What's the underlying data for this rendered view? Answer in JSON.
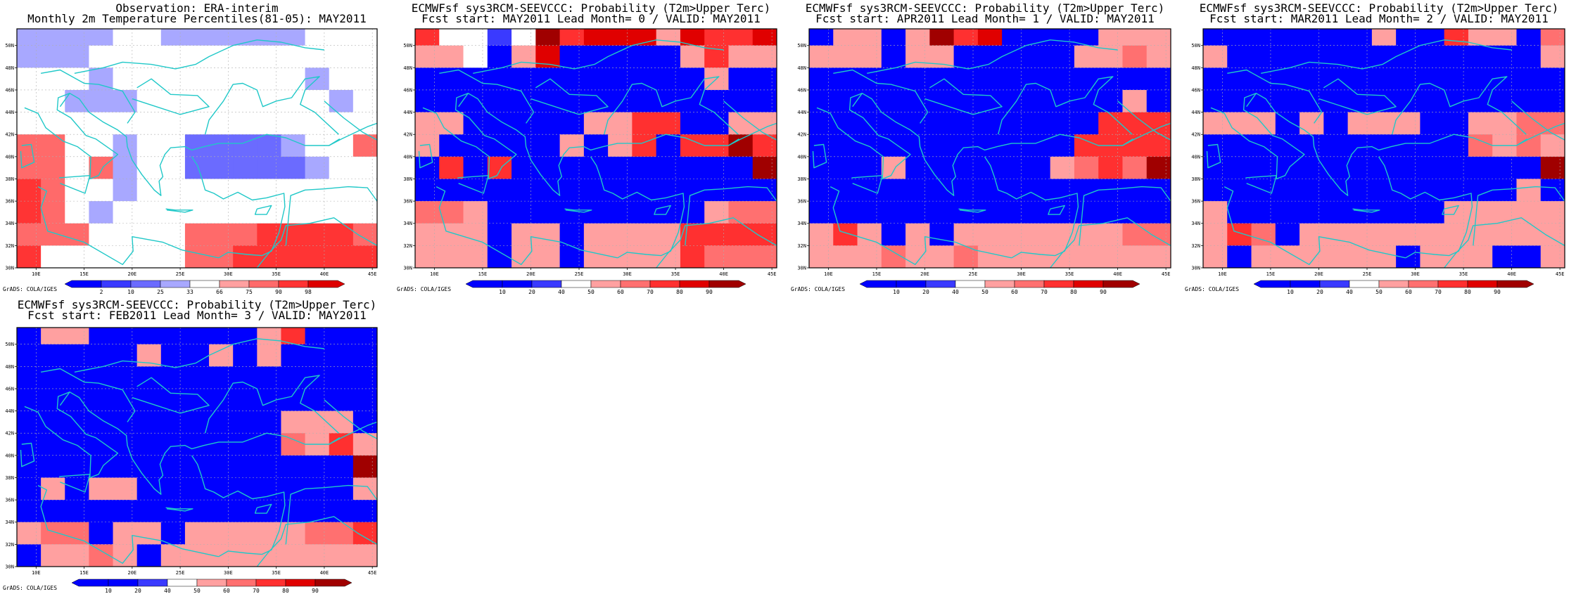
{
  "credit": "GrADS: COLA/IGES",
  "grid": {
    "lon_edges": [
      8,
      10.5,
      13,
      15.5,
      18,
      20.5,
      23,
      25.5,
      28,
      30.5,
      33,
      35.5,
      38,
      40.5,
      43,
      45.5
    ],
    "lat_edges": [
      30,
      32,
      34,
      36,
      38,
      40,
      42,
      44,
      46,
      48,
      50,
      52
    ]
  },
  "axes": {
    "lon_ticks": [
      10,
      15,
      20,
      25,
      30,
      35,
      40,
      45
    ],
    "lon_labels": [
      "10E",
      "15E",
      "20E",
      "25E",
      "30E",
      "35E",
      "40E",
      "45E"
    ],
    "lat_ticks": [
      30,
      32,
      34,
      36,
      38,
      40,
      42,
      44,
      46,
      48,
      50
    ],
    "lat_labels": [
      "30N",
      "32N",
      "34N",
      "36N",
      "38N",
      "40N",
      "42N",
      "44N",
      "46N",
      "48N",
      "50N"
    ]
  },
  "legends": {
    "percentile": {
      "labels": [
        "2",
        "10",
        "25",
        "33",
        "66",
        "75",
        "90",
        "98"
      ],
      "colors": [
        "#0000ff",
        "#3a3aff",
        "#6b6bff",
        "#a8a8ff",
        "#ffffff",
        "#ffa0a0",
        "#ff6a6a",
        "#ff3434",
        "#dd0000"
      ]
    },
    "probability": {
      "labels": [
        "10",
        "20",
        "40",
        "50",
        "60",
        "70",
        "80",
        "90"
      ],
      "colors": [
        "#0000ff",
        "#0000ff",
        "#3a3aff",
        "#ffffff",
        "#ffa0a0",
        "#ff7070",
        "#ff3030",
        "#e00000",
        "#a00000"
      ]
    }
  },
  "panels": [
    {
      "title1": "Observation: ERA-interim",
      "title2": "Monthly 2m Temperature Percentiles(81-05): MAY2011",
      "legend": "percentile",
      "cells": [
        [
          3,
          3,
          3,
          3,
          4,
          4,
          3,
          3,
          3,
          3,
          3,
          3,
          4,
          4,
          4
        ],
        [
          3,
          3,
          3,
          4,
          4,
          4,
          4,
          4,
          4,
          4,
          4,
          4,
          4,
          4,
          4
        ],
        [
          4,
          4,
          4,
          3,
          4,
          4,
          4,
          4,
          4,
          4,
          4,
          4,
          3,
          4,
          4
        ],
        [
          4,
          4,
          3,
          3,
          3,
          4,
          4,
          4,
          4,
          4,
          4,
          4,
          4,
          3,
          4
        ],
        [
          4,
          4,
          4,
          4,
          4,
          4,
          4,
          4,
          4,
          4,
          4,
          4,
          4,
          4,
          4
        ],
        [
          6,
          6,
          4,
          4,
          3,
          4,
          4,
          2,
          2,
          2,
          2,
          3,
          4,
          4,
          6
        ],
        [
          6,
          6,
          4,
          6,
          3,
          4,
          4,
          2,
          2,
          2,
          2,
          2,
          3,
          4,
          4
        ],
        [
          7,
          6,
          4,
          4,
          3,
          4,
          4,
          4,
          4,
          4,
          4,
          4,
          4,
          4,
          4
        ],
        [
          7,
          6,
          4,
          3,
          4,
          4,
          4,
          4,
          4,
          4,
          4,
          4,
          4,
          4,
          4
        ],
        [
          6,
          6,
          6,
          4,
          4,
          4,
          4,
          6,
          6,
          6,
          7,
          7,
          7,
          7,
          6
        ],
        [
          7,
          4,
          4,
          4,
          4,
          4,
          4,
          6,
          6,
          7,
          7,
          7,
          7,
          7,
          7
        ]
      ]
    },
    {
      "title1": "ECMWFsf sys3RCM-SEEVCCC: Probability (T2m>Upper Terc)",
      "title2": "Fcst start: MAY2011   Lead Month= 0 / VALID: MAY2011",
      "legend": "probability",
      "cells": [
        [
          6,
          3,
          3,
          2,
          3,
          8,
          6,
          7,
          7,
          7,
          4,
          7,
          6,
          6,
          7
        ],
        [
          4,
          4,
          3,
          0,
          4,
          7,
          1,
          1,
          1,
          1,
          1,
          4,
          6,
          4,
          4
        ],
        [
          1,
          1,
          1,
          1,
          1,
          1,
          1,
          1,
          1,
          1,
          1,
          1,
          4,
          1,
          1
        ],
        [
          1,
          1,
          1,
          1,
          1,
          1,
          1,
          1,
          1,
          1,
          1,
          1,
          1,
          1,
          1
        ],
        [
          4,
          4,
          1,
          1,
          1,
          1,
          1,
          4,
          4,
          6,
          6,
          1,
          1,
          4,
          4
        ],
        [
          4,
          1,
          1,
          1,
          1,
          1,
          4,
          1,
          4,
          6,
          1,
          6,
          6,
          8,
          6
        ],
        [
          1,
          6,
          1,
          6,
          1,
          1,
          1,
          1,
          1,
          1,
          1,
          1,
          1,
          1,
          8
        ],
        [
          1,
          1,
          1,
          1,
          1,
          1,
          1,
          1,
          1,
          1,
          1,
          1,
          1,
          1,
          1
        ],
        [
          5,
          5,
          4,
          1,
          1,
          1,
          1,
          1,
          1,
          1,
          1,
          1,
          4,
          5,
          5
        ],
        [
          4,
          4,
          4,
          1,
          4,
          4,
          1,
          4,
          4,
          4,
          4,
          6,
          6,
          6,
          6
        ],
        [
          4,
          4,
          4,
          1,
          4,
          4,
          1,
          4,
          4,
          4,
          4,
          6,
          5,
          5,
          5
        ]
      ]
    },
    {
      "title1": "ECMWFsf sys3RCM-SEEVCCC: Probability (T2m>Upper Terc)",
      "title2": "Fcst start: APR2011   Lead Month= 1 / VALID: MAY2011",
      "legend": "probability",
      "cells": [
        [
          1,
          4,
          4,
          1,
          4,
          8,
          6,
          7,
          1,
          1,
          1,
          1,
          4,
          4,
          4
        ],
        [
          4,
          4,
          4,
          1,
          4,
          4,
          1,
          1,
          1,
          1,
          1,
          4,
          4,
          5,
          4
        ],
        [
          1,
          1,
          1,
          1,
          1,
          1,
          1,
          1,
          1,
          1,
          1,
          1,
          1,
          1,
          1
        ],
        [
          1,
          1,
          1,
          1,
          1,
          1,
          1,
          1,
          1,
          1,
          1,
          1,
          1,
          4,
          1
        ],
        [
          1,
          1,
          1,
          1,
          1,
          1,
          1,
          1,
          1,
          1,
          1,
          1,
          6,
          6,
          6
        ],
        [
          1,
          1,
          1,
          1,
          1,
          1,
          1,
          1,
          1,
          1,
          1,
          6,
          6,
          6,
          6
        ],
        [
          1,
          1,
          1,
          4,
          1,
          1,
          1,
          1,
          1,
          1,
          4,
          5,
          6,
          5,
          8
        ],
        [
          1,
          1,
          1,
          1,
          1,
          1,
          1,
          1,
          1,
          1,
          1,
          1,
          1,
          1,
          1
        ],
        [
          1,
          1,
          1,
          1,
          1,
          1,
          1,
          1,
          1,
          1,
          1,
          1,
          1,
          1,
          1
        ],
        [
          4,
          6,
          4,
          1,
          4,
          1,
          4,
          4,
          4,
          4,
          4,
          4,
          4,
          5,
          5
        ],
        [
          4,
          4,
          4,
          5,
          4,
          4,
          5,
          4,
          4,
          4,
          4,
          4,
          4,
          4,
          4
        ]
      ]
    },
    {
      "title1": "ECMWFsf sys3RCM-SEEVCCC: Probability (T2m>Upper Terc)",
      "title2": "Fcst start: MAR2011   Lead Month= 2 / VALID: MAY2011",
      "legend": "probability",
      "cells": [
        [
          1,
          1,
          1,
          1,
          1,
          1,
          1,
          4,
          1,
          1,
          6,
          4,
          4,
          1,
          5
        ],
        [
          4,
          1,
          1,
          1,
          1,
          1,
          1,
          1,
          1,
          1,
          1,
          1,
          1,
          1,
          4
        ],
        [
          1,
          1,
          1,
          1,
          1,
          1,
          1,
          1,
          1,
          1,
          1,
          1,
          1,
          1,
          1
        ],
        [
          1,
          1,
          1,
          1,
          1,
          1,
          1,
          1,
          1,
          1,
          1,
          1,
          1,
          1,
          1
        ],
        [
          4,
          4,
          4,
          1,
          4,
          1,
          4,
          4,
          4,
          1,
          1,
          4,
          4,
          5,
          5
        ],
        [
          1,
          1,
          1,
          1,
          1,
          1,
          1,
          1,
          1,
          1,
          1,
          5,
          4,
          5,
          4
        ],
        [
          1,
          1,
          1,
          1,
          1,
          1,
          1,
          1,
          1,
          1,
          1,
          1,
          1,
          1,
          8
        ],
        [
          1,
          1,
          1,
          1,
          1,
          1,
          1,
          1,
          1,
          1,
          1,
          1,
          1,
          4,
          1
        ],
        [
          4,
          1,
          1,
          1,
          1,
          1,
          1,
          1,
          1,
          1,
          4,
          4,
          4,
          4,
          4
        ],
        [
          4,
          6,
          5,
          1,
          4,
          4,
          4,
          4,
          4,
          4,
          4,
          4,
          4,
          4,
          4
        ],
        [
          4,
          1,
          4,
          4,
          4,
          4,
          4,
          4,
          1,
          4,
          4,
          4,
          1,
          1,
          4
        ]
      ]
    },
    {
      "title1": "ECMWFsf sys3RCM-SEEVCCC: Probability (T2m>Upper Terc)",
      "title2": "Fcst start: FEB2011   Lead Month= 3 / VALID: MAY2011",
      "legend": "probability",
      "cells": [
        [
          1,
          4,
          4,
          1,
          1,
          1,
          1,
          1,
          1,
          1,
          4,
          6,
          1,
          1,
          1
        ],
        [
          1,
          1,
          1,
          1,
          1,
          4,
          1,
          1,
          4,
          1,
          4,
          1,
          1,
          1,
          1
        ],
        [
          1,
          1,
          1,
          1,
          1,
          1,
          1,
          1,
          1,
          1,
          1,
          1,
          1,
          1,
          1
        ],
        [
          1,
          1,
          1,
          1,
          1,
          1,
          1,
          1,
          1,
          1,
          1,
          1,
          1,
          1,
          1
        ],
        [
          1,
          1,
          1,
          1,
          1,
          1,
          1,
          1,
          1,
          1,
          1,
          4,
          4,
          4,
          1
        ],
        [
          1,
          1,
          1,
          1,
          1,
          1,
          1,
          1,
          1,
          1,
          1,
          5,
          4,
          6,
          4
        ],
        [
          1,
          1,
          1,
          1,
          1,
          1,
          1,
          1,
          1,
          1,
          1,
          1,
          1,
          1,
          8
        ],
        [
          1,
          4,
          1,
          4,
          4,
          1,
          1,
          1,
          1,
          1,
          1,
          1,
          1,
          1,
          4
        ],
        [
          1,
          1,
          1,
          1,
          1,
          1,
          1,
          1,
          1,
          1,
          1,
          1,
          1,
          1,
          1
        ],
        [
          4,
          5,
          5,
          1,
          4,
          4,
          1,
          4,
          4,
          4,
          4,
          4,
          5,
          5,
          6
        ],
        [
          1,
          4,
          4,
          5,
          4,
          1,
          4,
          4,
          4,
          4,
          4,
          4,
          4,
          4,
          4
        ]
      ]
    }
  ]
}
